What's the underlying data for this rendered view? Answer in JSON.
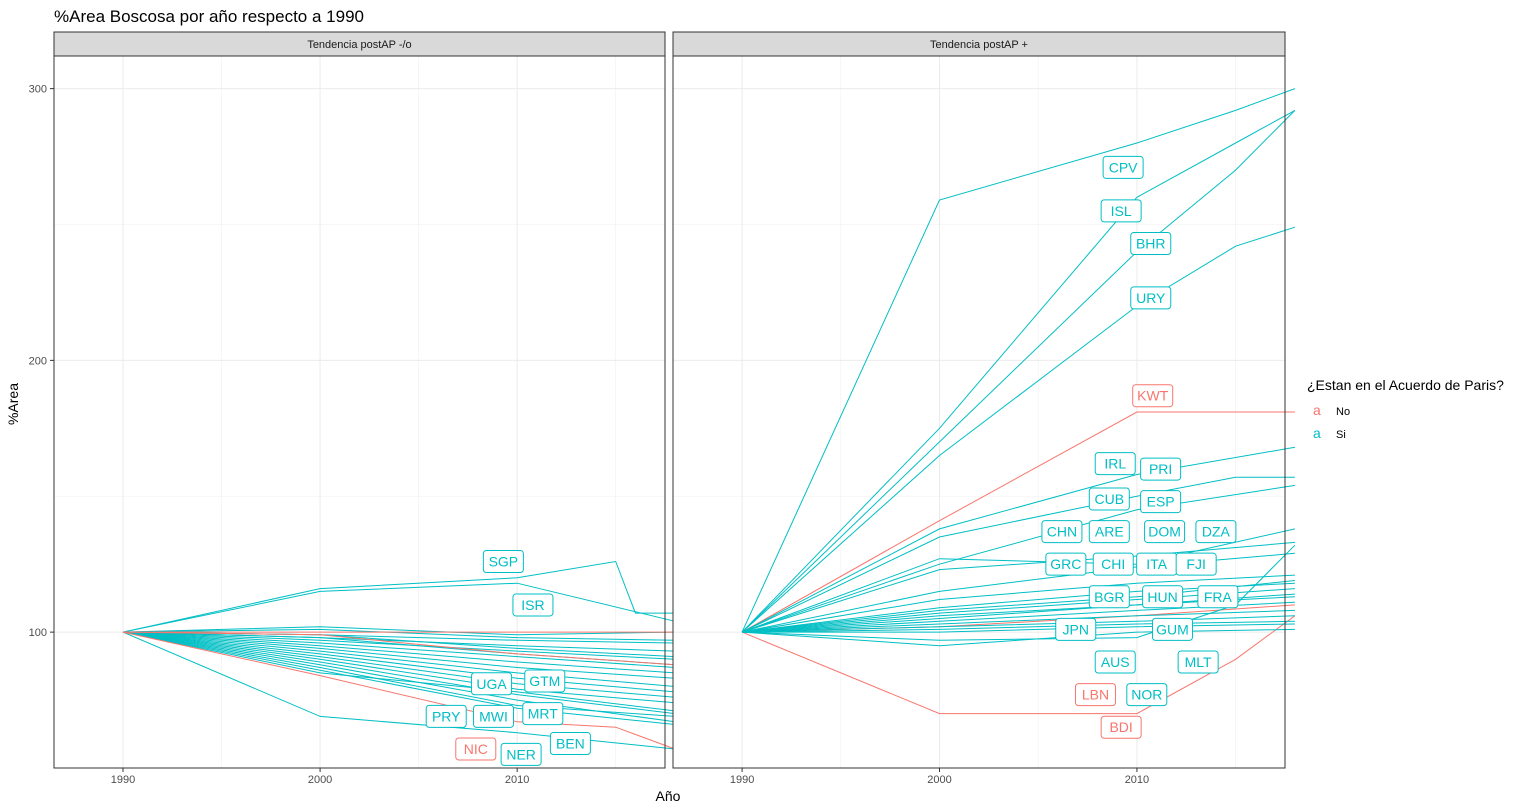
{
  "chart_data": {
    "type": "line",
    "title": "%Area  Boscosa por año respecto a 1990",
    "xlabel": "Año",
    "ylabel": "%Area",
    "xlim": [
      1986.5,
      2017.5
    ],
    "ylim": [
      50,
      312
    ],
    "x_ticks": [
      1990,
      2000,
      2010
    ],
    "y_ticks": [
      100,
      200,
      300
    ],
    "grid": true,
    "legend": {
      "title": "¿Estan en el Acuerdo de Paris?",
      "position": "right",
      "glyph": "a",
      "entries": [
        {
          "label": "No",
          "color": "#F8766D"
        },
        {
          "label": "Si",
          "color": "#00BFC4"
        }
      ]
    },
    "panels": [
      {
        "strip": "Tendencia postAP -/o",
        "series": [
          {
            "group": "Si",
            "x": [
              1990,
              2000,
              2010,
              2015,
              2016,
              2018
            ],
            "y": [
              100,
              116,
              120,
              126,
              107,
              107
            ]
          },
          {
            "group": "Si",
            "x": [
              1990,
              2000,
              2010,
              2018
            ],
            "y": [
              100,
              115,
              118,
              104
            ]
          },
          {
            "group": "Si",
            "x": [
              1990,
              2000,
              2010,
              2018
            ],
            "y": [
              100,
              85,
              78,
              71
            ]
          },
          {
            "group": "Si",
            "x": [
              1990,
              2000,
              2010,
              2018
            ],
            "y": [
              100,
              69,
              63,
              57
            ]
          },
          {
            "group": "Si",
            "x": [
              1990,
              2000,
              2010,
              2018
            ],
            "y": [
              100,
              91,
              81,
              76
            ]
          },
          {
            "group": "Si",
            "x": [
              1990,
              2000,
              2010,
              2018
            ],
            "y": [
              100,
              89,
              77,
              70
            ]
          },
          {
            "group": "Si",
            "x": [
              1990,
              2000,
              2010,
              2018
            ],
            "y": [
              100,
              88,
              75,
              67
            ]
          },
          {
            "group": "Si",
            "x": [
              1990,
              2000,
              2010,
              2018
            ],
            "y": [
              100,
              93,
              85,
              80
            ]
          },
          {
            "group": "Si",
            "x": [
              1990,
              2000,
              2010,
              2018
            ],
            "y": [
              100,
              95,
              89,
              85
            ]
          },
          {
            "group": "Si",
            "x": [
              1990,
              2000,
              2010,
              2018
            ],
            "y": [
              100,
              97,
              93,
              90
            ]
          },
          {
            "group": "Si",
            "x": [
              1990,
              2000,
              2010,
              2018
            ],
            "y": [
              100,
              98,
              95,
              93
            ]
          },
          {
            "group": "Si",
            "x": [
              1990,
              2000,
              2010,
              2018
            ],
            "y": [
              100,
              99,
              97,
              96
            ]
          },
          {
            "group": "Si",
            "x": [
              1990,
              2000,
              2010,
              2018
            ],
            "y": [
              100,
              102,
              99,
              100
            ]
          },
          {
            "group": "Si",
            "x": [
              1990,
              2000,
              2010,
              2018
            ],
            "y": [
              100,
              96,
              91,
              87
            ]
          },
          {
            "group": "Si",
            "x": [
              1990,
              2000,
              2010,
              2018
            ],
            "y": [
              100,
              94,
              87,
              83
            ]
          },
          {
            "group": "Si",
            "x": [
              1990,
              2000,
              2010,
              2018
            ],
            "y": [
              100,
              92,
              83,
              78
            ]
          },
          {
            "group": "Si",
            "x": [
              1990,
              2000,
              2010,
              2018
            ],
            "y": [
              100,
              90,
              79,
              74
            ]
          },
          {
            "group": "Si",
            "x": [
              1990,
              2000,
              2010,
              2018
            ],
            "y": [
              100,
              87,
              73,
              69
            ]
          },
          {
            "group": "Si",
            "x": [
              1990,
              2000,
              2010,
              2018
            ],
            "y": [
              100,
              86,
              72,
              66
            ]
          },
          {
            "group": "Si",
            "x": [
              1990,
              2000,
              2010,
              2018
            ],
            "y": [
              100,
              98,
              92,
              88
            ]
          },
          {
            "group": "Si",
            "x": [
              1990,
              2000,
              2010,
              2018
            ],
            "y": [
              100,
              101,
              98,
              97
            ]
          },
          {
            "group": "Si",
            "x": [
              1990,
              2000,
              2010,
              2018
            ],
            "y": [
              100,
              99,
              94,
              91
            ]
          },
          {
            "group": "No",
            "x": [
              1990,
              2000,
              2010,
              2015,
              2018
            ],
            "y": [
              100,
              84,
              67,
              65,
              57
            ]
          },
          {
            "group": "No",
            "x": [
              1990,
              2000,
              2010,
              2018
            ],
            "y": [
              100,
              99,
              92,
              88
            ]
          },
          {
            "group": "No",
            "x": [
              1990,
              2000,
              2010,
              2018
            ],
            "y": [
              100,
              100,
              100,
              100
            ]
          }
        ],
        "labels": [
          {
            "text": "SGP",
            "group": "Si",
            "x": 2009.3,
            "y": 126
          },
          {
            "text": "ISR",
            "group": "Si",
            "x": 2010.8,
            "y": 110
          },
          {
            "text": "UGA",
            "group": "Si",
            "x": 2008.7,
            "y": 81
          },
          {
            "text": "GTM",
            "group": "Si",
            "x": 2011.4,
            "y": 82
          },
          {
            "text": "PRY",
            "group": "Si",
            "x": 2006.4,
            "y": 69
          },
          {
            "text": "MWI",
            "group": "Si",
            "x": 2008.8,
            "y": 69
          },
          {
            "text": "MRT",
            "group": "Si",
            "x": 2011.3,
            "y": 70
          },
          {
            "text": "NIC",
            "group": "No",
            "x": 2007.9,
            "y": 57
          },
          {
            "text": "BEN",
            "group": "Si",
            "x": 2012.7,
            "y": 59
          },
          {
            "text": "NER",
            "group": "Si",
            "x": 2010.2,
            "y": 55
          }
        ]
      },
      {
        "strip": "Tendencia postAP +",
        "series": [
          {
            "group": "Si",
            "x": [
              1990,
              2000,
              2010,
              2015,
              2018
            ],
            "y": [
              100,
              259,
              280,
              292,
              300
            ]
          },
          {
            "group": "Si",
            "x": [
              1990,
              2000,
              2010,
              2015,
              2018
            ],
            "y": [
              100,
              175,
              260,
              280,
              292
            ]
          },
          {
            "group": "Si",
            "x": [
              1990,
              2000,
              2010,
              2015,
              2018
            ],
            "y": [
              100,
              170,
              240,
              270,
              292
            ]
          },
          {
            "group": "Si",
            "x": [
              1990,
              2000,
              2010,
              2015,
              2018
            ],
            "y": [
              100,
              165,
              220,
              242,
              249
            ]
          },
          {
            "group": "No",
            "x": [
              1990,
              2000,
              2010,
              2018
            ],
            "y": [
              100,
              141,
              181,
              181
            ]
          },
          {
            "group": "No",
            "x": [
              1990,
              2000,
              2010,
              2015,
              2018
            ],
            "y": [
              100,
              70,
              70,
              90,
              106
            ]
          },
          {
            "group": "No",
            "x": [
              1990,
              2000,
              2010,
              2018
            ],
            "y": [
              100,
              102,
              106,
              110
            ]
          },
          {
            "group": "Si",
            "x": [
              1990,
              2000,
              2010,
              2018
            ],
            "y": [
              100,
              138,
              158,
              168
            ]
          },
          {
            "group": "Si",
            "x": [
              1990,
              2000,
              2010,
              2015,
              2018
            ],
            "y": [
              100,
              135,
              150,
              157,
              157
            ]
          },
          {
            "group": "Si",
            "x": [
              1990,
              2000,
              2010,
              2018
            ],
            "y": [
              100,
              125,
              145,
              154
            ]
          },
          {
            "group": "Si",
            "x": [
              1990,
              2000,
              2010,
              2018
            ],
            "y": [
              100,
              127,
              125,
              138
            ]
          },
          {
            "group": "Si",
            "x": [
              1990,
              2000,
              2010,
              2018
            ],
            "y": [
              100,
              123,
              128,
              133
            ]
          },
          {
            "group": "Si",
            "x": [
              1990,
              2000,
              2010,
              2018
            ],
            "y": [
              100,
              115,
              124,
              129
            ]
          },
          {
            "group": "Si",
            "x": [
              1990,
              2000,
              2010,
              2018
            ],
            "y": [
              100,
              112,
              118,
              121
            ]
          },
          {
            "group": "Si",
            "x": [
              1990,
              2000,
              2010,
              2018
            ],
            "y": [
              100,
              109,
              115,
              118
            ]
          },
          {
            "group": "Si",
            "x": [
              1990,
              2000,
              2010,
              2018
            ],
            "y": [
              100,
              107,
              112,
              116
            ]
          },
          {
            "group": "Si",
            "x": [
              1990,
              2000,
              2010,
              2018
            ],
            "y": [
              100,
              106,
              110,
              114
            ]
          },
          {
            "group": "Si",
            "x": [
              1990,
              2000,
              2010,
              2018
            ],
            "y": [
              100,
              104,
              108,
              111
            ]
          },
          {
            "group": "Si",
            "x": [
              1990,
              2000,
              2010,
              2018
            ],
            "y": [
              100,
              103,
              106,
              108
            ]
          },
          {
            "group": "Si",
            "x": [
              1990,
              2000,
              2010,
              2018
            ],
            "y": [
              100,
              102,
              104,
              106
            ]
          },
          {
            "group": "Si",
            "x": [
              1990,
              2000,
              2010,
              2018
            ],
            "y": [
              100,
              101,
              103,
              104
            ]
          },
          {
            "group": "Si",
            "x": [
              1990,
              2000,
              2010,
              2018
            ],
            "y": [
              100,
              100,
              102,
              103
            ]
          },
          {
            "group": "Si",
            "x": [
              1990,
              2000,
              2010,
              2018
            ],
            "y": [
              100,
              95,
              100,
              101
            ]
          },
          {
            "group": "Si",
            "x": [
              1990,
              2000,
              2010,
              2015,
              2018
            ],
            "y": [
              100,
              97,
              98,
              110,
              132
            ]
          },
          {
            "group": "Si",
            "x": [
              1990,
              2000,
              2010,
              2018
            ],
            "y": [
              100,
              105,
              110,
              113
            ]
          },
          {
            "group": "Si",
            "x": [
              1990,
              2000,
              2010,
              2018
            ],
            "y": [
              100,
              108,
              113,
              119
            ]
          }
        ],
        "labels": [
          {
            "text": "CPV",
            "group": "Si",
            "x": 2009.3,
            "y": 271
          },
          {
            "text": "ISL",
            "group": "Si",
            "x": 2009.2,
            "y": 255
          },
          {
            "text": "BHR",
            "group": "Si",
            "x": 2010.7,
            "y": 243
          },
          {
            "text": "URY",
            "group": "Si",
            "x": 2010.7,
            "y": 223
          },
          {
            "text": "KWT",
            "group": "No",
            "x": 2010.8,
            "y": 187
          },
          {
            "text": "IRL",
            "group": "Si",
            "x": 2008.9,
            "y": 162
          },
          {
            "text": "PRI",
            "group": "Si",
            "x": 2011.2,
            "y": 160
          },
          {
            "text": "CUB",
            "group": "Si",
            "x": 2008.6,
            "y": 149
          },
          {
            "text": "ESP",
            "group": "Si",
            "x": 2011.2,
            "y": 148
          },
          {
            "text": "CHN",
            "group": "Si",
            "x": 2006.2,
            "y": 137
          },
          {
            "text": "ARE",
            "group": "Si",
            "x": 2008.6,
            "y": 137
          },
          {
            "text": "DOM",
            "group": "Si",
            "x": 2011.4,
            "y": 137
          },
          {
            "text": "DZA",
            "group": "Si",
            "x": 2014.0,
            "y": 137
          },
          {
            "text": "GRC",
            "group": "Si",
            "x": 2006.4,
            "y": 125
          },
          {
            "text": "CHI",
            "group": "Si",
            "x": 2008.8,
            "y": 125
          },
          {
            "text": "ITA",
            "group": "Si",
            "x": 2011.0,
            "y": 125
          },
          {
            "text": "FJI",
            "group": "Si",
            "x": 2013.0,
            "y": 125
          },
          {
            "text": "BGR",
            "group": "Si",
            "x": 2008.6,
            "y": 113
          },
          {
            "text": "HUN",
            "group": "Si",
            "x": 2011.3,
            "y": 113
          },
          {
            "text": "FRA",
            "group": "Si",
            "x": 2014.1,
            "y": 113
          },
          {
            "text": "JPN",
            "group": "Si",
            "x": 2006.9,
            "y": 101
          },
          {
            "text": "GUM",
            "group": "Si",
            "x": 2011.8,
            "y": 101
          },
          {
            "text": "AUS",
            "group": "Si",
            "x": 2008.9,
            "y": 89
          },
          {
            "text": "MLT",
            "group": "Si",
            "x": 2013.1,
            "y": 89
          },
          {
            "text": "LBN",
            "group": "No",
            "x": 2007.9,
            "y": 77
          },
          {
            "text": "NOR",
            "group": "Si",
            "x": 2010.5,
            "y": 77
          },
          {
            "text": "BDI",
            "group": "No",
            "x": 2009.2,
            "y": 65
          }
        ]
      }
    ]
  }
}
